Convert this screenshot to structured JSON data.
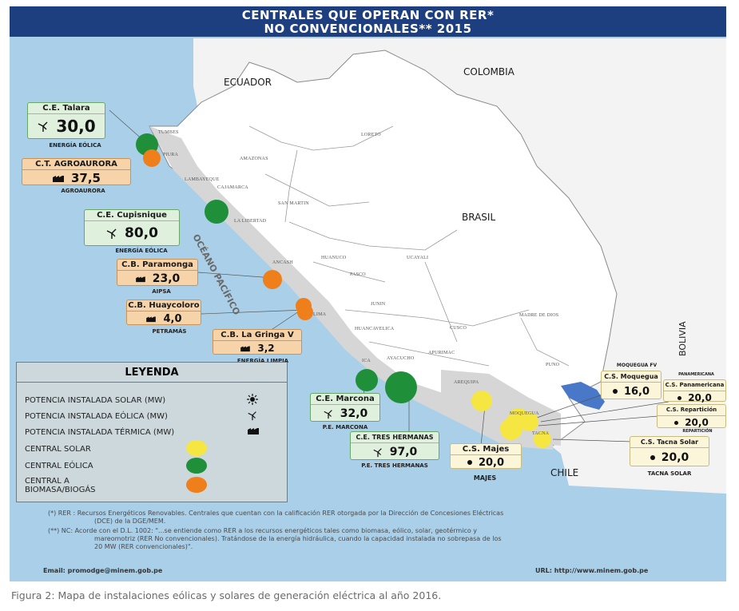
{
  "map": {
    "title_line1": "CENTRALES QUE OPERAN CON RER*",
    "title_line2": "NO CONVENCIONALES** 2015",
    "countries": {
      "ecuador": "ECUADOR",
      "colombia": "COLOMBIA",
      "brasil": "BRASIL",
      "bolivia": "BOLIVIA",
      "chile": "CHILE"
    },
    "ocean": "OCÉANO PACÍFICO",
    "regions": [
      "TUMBES",
      "PIURA",
      "LAMBAYEQUE",
      "CAJAMARCA",
      "AMAZONAS",
      "LORETO",
      "SAN MARTIN",
      "LA LIBERTAD",
      "ANCASH",
      "HUANUCO",
      "UCAYALI",
      "PASCO",
      "LIMA",
      "JUNIN",
      "HUANCAVELICA",
      "CUSCO",
      "MADRE DE DIOS",
      "ICA",
      "AYACUCHO",
      "APURIMAC",
      "PUNO",
      "AREQUIPA",
      "MOQUEGUA",
      "TACNA"
    ],
    "plants": [
      {
        "name": "C.E. Talara",
        "value": "30,0",
        "sub": "ENERGÍA EÓLICA",
        "type": "eolica",
        "icon": "wind-turbine-icon"
      },
      {
        "name": "C.T. AGROAURORA",
        "value": "37,5",
        "sub": "AGROAURORA",
        "type": "biomasa",
        "icon": "thermal-plant-icon"
      },
      {
        "name": "C.E. Cupisnique",
        "value": "80,0",
        "sub": "ENERGÍA EÓLICA",
        "type": "eolica",
        "icon": "wind-turbine-icon"
      },
      {
        "name": "C.B. Paramonga",
        "value": "23,0",
        "sub": "AIPSA",
        "type": "biomasa",
        "icon": "thermal-plant-icon"
      },
      {
        "name": "C.B. Huaycoloro",
        "value": "4,0",
        "sub": "PETRAMÁS",
        "type": "biomasa",
        "icon": "thermal-plant-icon"
      },
      {
        "name": "C.B. La Gringa V",
        "value": "3,2",
        "sub": "ENERGÍA LIMPIA",
        "type": "biomasa",
        "icon": "thermal-plant-icon"
      },
      {
        "name": "C.E. Marcona",
        "value": "32,0",
        "sub": "P.E. MARCONA",
        "type": "eolica",
        "icon": "wind-turbine-icon"
      },
      {
        "name": "C.E. TRES HERMANAS",
        "value": "97,0",
        "sub": "P.E. TRES HERMANAS",
        "type": "eolica",
        "icon": "wind-turbine-icon"
      },
      {
        "name": "C.S. Majes",
        "value": "20,0",
        "sub": "MAJES",
        "type": "solar",
        "icon": "sun-icon"
      },
      {
        "name": "C.S. Moquegua",
        "value": "16,0",
        "sub": "MOQUEGUA FV",
        "type": "solar",
        "icon": "sun-icon"
      },
      {
        "name": "C.S. Panamericana",
        "value": "20,0",
        "sub": "PANAMERICANA",
        "type": "solar",
        "icon": "sun-icon"
      },
      {
        "name": "C.S. Repartición",
        "value": "20,0",
        "sub": "REPARTICIÓN",
        "type": "solar",
        "icon": "sun-icon"
      },
      {
        "name": "C.S. Tacna Solar",
        "value": "20,0",
        "sub": "TACNA SOLAR",
        "type": "solar",
        "icon": "sun-icon"
      }
    ],
    "legend": {
      "title": "LEYENDA",
      "items": [
        "POTENCIA INSTALADA SOLAR (MW)",
        "POTENCIA INSTALADA EÓLICA (MW)",
        "POTENCIA INSTALADA TÉRMICA (MW)",
        "CENTRAL SOLAR",
        "CENTRAL EÓLICA",
        "CENTRAL A",
        "BIOMASA/BIOGÁS"
      ]
    },
    "colors": {
      "solar": "#f5e642",
      "eolica": "#1f8f3a",
      "biomasa": "#ef7f1a",
      "land": "#ffffff",
      "coast": "#d8d8d8",
      "sea": "#a9cfe9",
      "lake": "#4a78c8"
    },
    "notes": [
      "(*) RER : Recursos Energéticos Renovables. Centrales que cuentan con la calificación RER otorgada por la Dirección de Concesiones Eléctricas",
      "(DCE) de la DGE/MEM.",
      "(**) NC: Acorde con el D.L. 1002: \"...se entiende como RER a los recursos energéticos tales como biomasa, eólico, solar, geotérmico y",
      "mareomotriz (RER No convencionales). Tratándose de la energía hidráulica, cuando la capacidad instalada no sobrepasa de los",
      "20 MW (RER convencionales)\"."
    ],
    "email": "Email: promodge@minem.gob.pe",
    "url": "URL: http://www.minem.gob.pe"
  },
  "caption": "Figura 2: Mapa de instalaciones eólicas y solares de generación eléctrica al año 2016."
}
